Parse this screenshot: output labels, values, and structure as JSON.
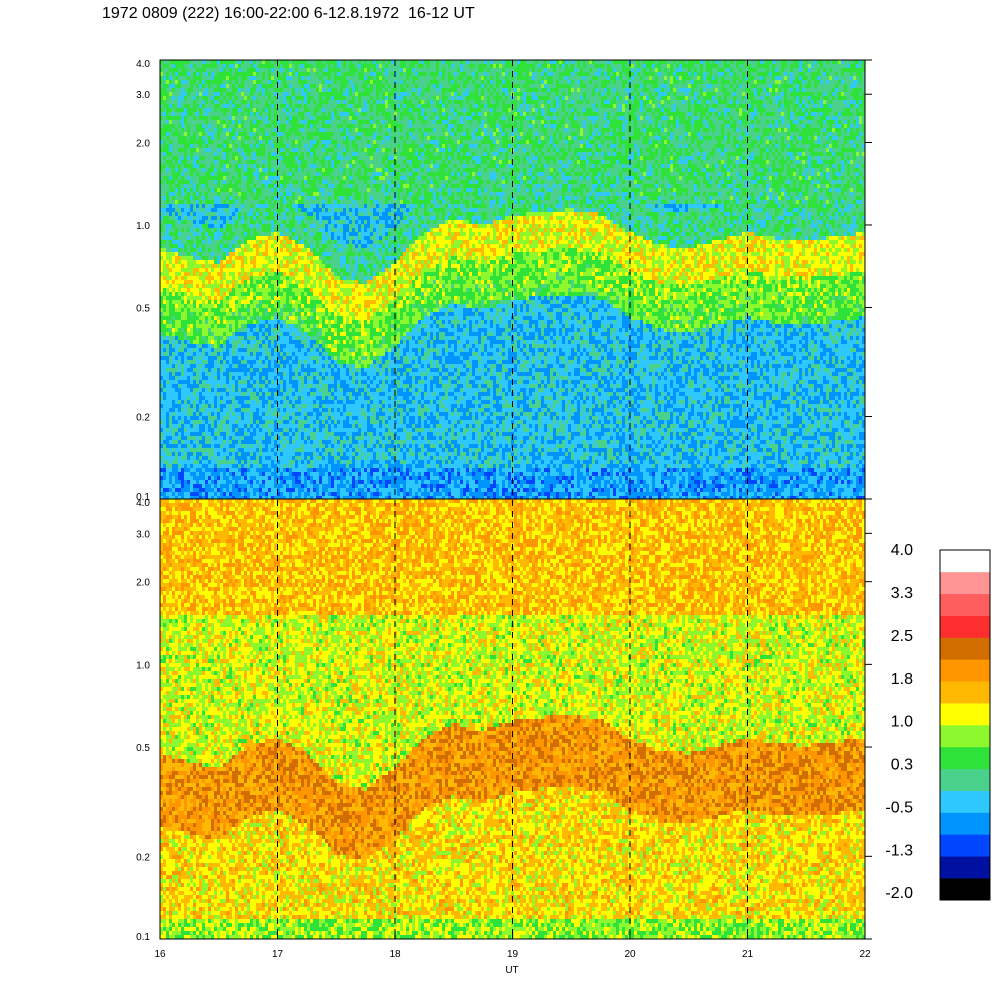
{
  "title": "1972 0809 (222) 16:00-22:00 6-12.8.1972  16-12 UT",
  "chart_data": {
    "type": "heatmap",
    "panels": [
      {
        "name": "top",
        "y_scale": "log",
        "ylim": [
          0.1,
          4.0
        ],
        "xlim": [
          16,
          22
        ],
        "y_ticks": [
          "4.0",
          "3.0",
          "2.0",
          "1.0",
          "0.5",
          "0.2",
          "0.1"
        ],
        "y_tick_values": [
          4.0,
          3.0,
          2.0,
          1.0,
          0.5,
          0.2,
          0.1
        ],
        "ridge_freq": [
          0.7,
          0.65,
          0.62,
          0.75,
          0.8,
          0.7,
          0.55,
          0.52,
          0.62,
          0.8,
          0.9,
          0.85,
          0.92,
          0.95,
          0.97,
          0.93,
          0.8,
          0.72,
          0.7,
          0.75,
          0.8,
          0.76,
          0.75,
          0.77,
          0.8
        ]
      },
      {
        "name": "bottom",
        "y_scale": "log",
        "ylim": [
          0.1,
          4.0
        ],
        "xlim": [
          16,
          22
        ],
        "y_ticks": [
          "4.0",
          "3.0",
          "2.0",
          "1.0",
          "0.5",
          "0.2",
          "0.1"
        ],
        "y_tick_values": [
          4.0,
          3.0,
          2.0,
          1.0,
          0.5,
          0.2,
          0.1
        ]
      }
    ],
    "x_ticks": [
      "16",
      "17",
      "18",
      "19",
      "20",
      "21",
      "22"
    ],
    "x_tick_values": [
      16,
      17,
      18,
      19,
      20,
      21,
      22
    ],
    "xlabel": "UT",
    "dashed_lines_x": [
      17,
      18,
      19,
      20,
      21
    ],
    "colorbar": {
      "labels": [
        "4.0",
        "3.3",
        "2.5",
        "1.8",
        "1.0",
        "0.3",
        "-0.5",
        "-1.3",
        "-2.0"
      ],
      "range": [
        -2.0,
        4.0
      ],
      "colors": [
        "#000000",
        "#0010a0",
        "#0046ff",
        "#0094ff",
        "#2ec8ff",
        "#4ad28c",
        "#2ee23a",
        "#8ef82e",
        "#ffff00",
        "#ffb900",
        "#ff9600",
        "#d26e00",
        "#ff2e2e",
        "#ff5e5e",
        "#ff9494",
        "#ffffff"
      ]
    }
  }
}
